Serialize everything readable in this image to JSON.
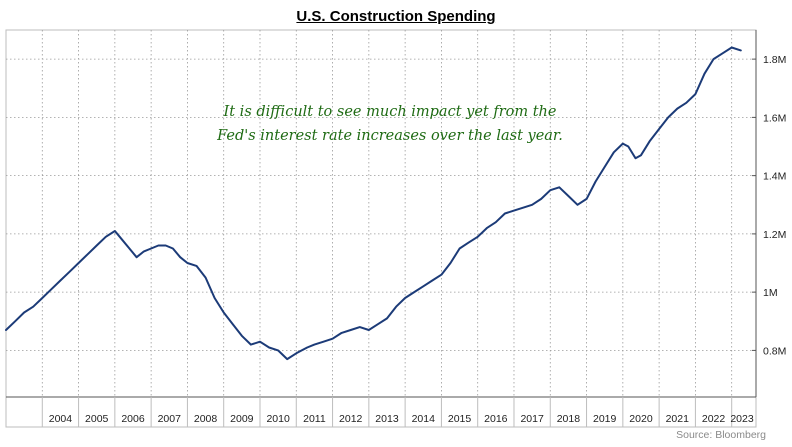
{
  "chart_data": {
    "type": "line",
    "title": "U.S. Construction Spending",
    "annotation": [
      "It is difficult to see much impact yet from the",
      "Fed's interest rate increases over the last year."
    ],
    "source": "Source: Bloomberg",
    "xlabel": "",
    "ylabel": "",
    "xlim": [
      2003.0,
      2023.67
    ],
    "ylim": [
      0.64,
      1.9
    ],
    "grid": true,
    "x_tick_labels": [
      "2004",
      "2005",
      "2006",
      "2007",
      "2008",
      "2009",
      "2010",
      "2011",
      "2012",
      "2013",
      "2014",
      "2015",
      "2016",
      "2017",
      "2018",
      "2019",
      "2020",
      "2021",
      "2022",
      "2023"
    ],
    "y_ticks": [
      0.8,
      1.0,
      1.2,
      1.4,
      1.6,
      1.8
    ],
    "y_tick_labels": [
      "0.8M",
      "1M",
      "1.2M",
      "1.4M",
      "1.6M",
      "1.8M"
    ],
    "line_color": "#1c3b78",
    "series": [
      {
        "x": [
          2003.0,
          2003.25,
          2003.5,
          2003.75,
          2004.0,
          2004.25,
          2004.5,
          2004.75,
          2005.0,
          2005.25,
          2005.5,
          2005.75,
          2006.0,
          2006.2,
          2006.4,
          2006.6,
          2006.8,
          2007.0,
          2007.2,
          2007.4,
          2007.6,
          2007.8,
          2008.0,
          2008.25,
          2008.5,
          2008.75,
          2009.0,
          2009.25,
          2009.5,
          2009.75,
          2010.0,
          2010.25,
          2010.5,
          2010.75,
          2011.0,
          2011.15,
          2011.3,
          2011.5,
          2011.75,
          2012.0,
          2012.25,
          2012.5,
          2012.75,
          2013.0,
          2013.25,
          2013.5,
          2013.75,
          2014.0,
          2014.25,
          2014.5,
          2014.75,
          2015.0,
          2015.25,
          2015.5,
          2015.75,
          2016.0,
          2016.25,
          2016.5,
          2016.75,
          2017.0,
          2017.25,
          2017.5,
          2017.75,
          2018.0,
          2018.25,
          2018.5,
          2018.75,
          2019.0,
          2019.25,
          2019.5,
          2019.75,
          2020.0,
          2020.15,
          2020.35,
          2020.5,
          2020.75,
          2021.0,
          2021.25,
          2021.5,
          2021.75,
          2022.0,
          2022.25,
          2022.5,
          2022.75,
          2023.0,
          2023.25
        ],
        "values": [
          0.87,
          0.9,
          0.93,
          0.95,
          0.98,
          1.01,
          1.04,
          1.07,
          1.1,
          1.13,
          1.16,
          1.19,
          1.21,
          1.18,
          1.15,
          1.12,
          1.14,
          1.15,
          1.16,
          1.16,
          1.15,
          1.12,
          1.1,
          1.09,
          1.05,
          0.98,
          0.93,
          0.89,
          0.85,
          0.82,
          0.83,
          0.81,
          0.8,
          0.77,
          0.79,
          0.8,
          0.81,
          0.82,
          0.83,
          0.84,
          0.86,
          0.87,
          0.88,
          0.87,
          0.89,
          0.91,
          0.95,
          0.98,
          1.0,
          1.02,
          1.04,
          1.06,
          1.1,
          1.15,
          1.17,
          1.19,
          1.22,
          1.24,
          1.27,
          1.28,
          1.29,
          1.3,
          1.32,
          1.35,
          1.36,
          1.33,
          1.3,
          1.32,
          1.38,
          1.43,
          1.48,
          1.51,
          1.5,
          1.46,
          1.47,
          1.52,
          1.56,
          1.6,
          1.63,
          1.65,
          1.68,
          1.75,
          1.8,
          1.82,
          1.84,
          1.83
        ]
      }
    ]
  }
}
